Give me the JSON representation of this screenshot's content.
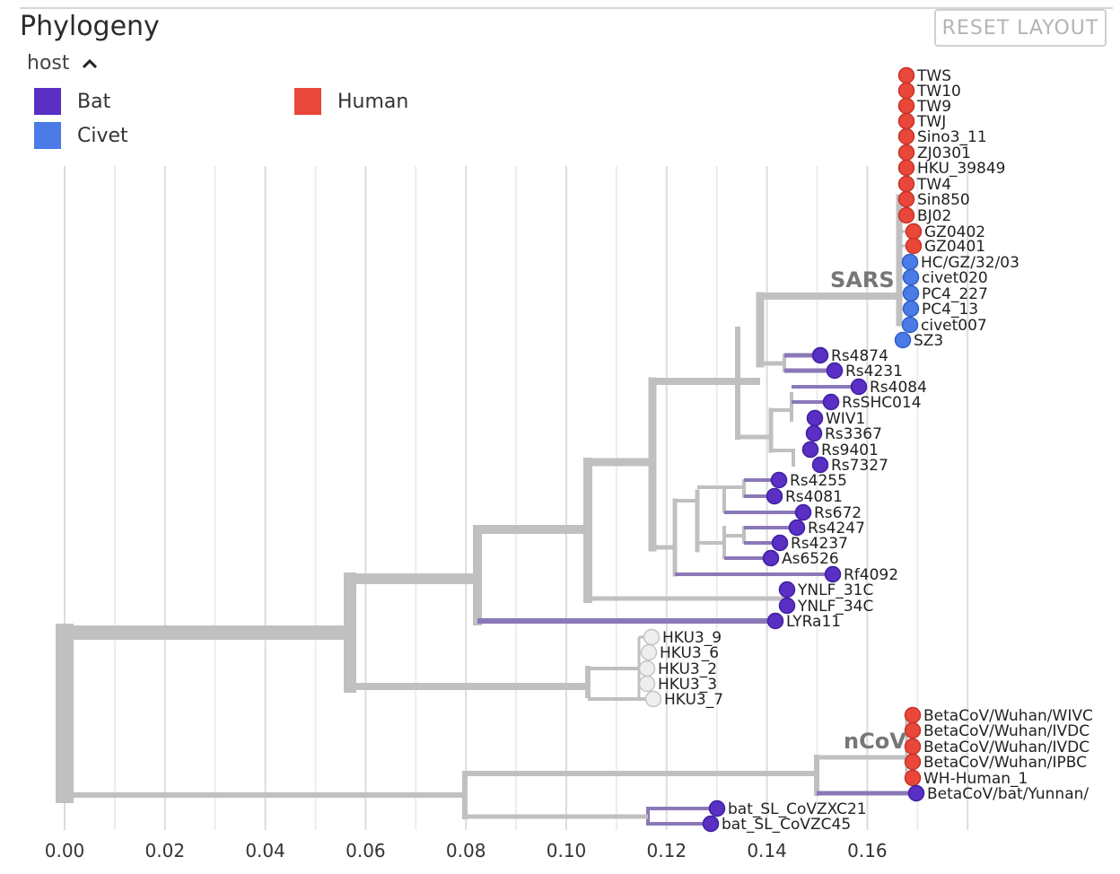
{
  "panel": {
    "title": "Phylogeny",
    "reset_label": "RESET LAYOUT"
  },
  "color_by": {
    "label": "host",
    "icon": "chevron-up-icon"
  },
  "legend": [
    {
      "label": "Bat",
      "color": "#5a2fc4"
    },
    {
      "label": "Human",
      "color": "#e8473a"
    },
    {
      "label": "Civet",
      "color": "#4a7be6"
    }
  ],
  "axis": {
    "ticks": [
      "0.00",
      "0.02",
      "0.04",
      "0.06",
      "0.08",
      "0.10",
      "0.12",
      "0.14",
      "0.16"
    ]
  },
  "clade_labels": {
    "sars": "SARS",
    "ncov": "nCoV"
  },
  "tips": [
    {
      "name": "TWS",
      "host": "human"
    },
    {
      "name": "TW10",
      "host": "human"
    },
    {
      "name": "TW9",
      "host": "human"
    },
    {
      "name": "TWJ",
      "host": "human"
    },
    {
      "name": "Sino3_11",
      "host": "human"
    },
    {
      "name": "ZJ0301",
      "host": "human"
    },
    {
      "name": "HKU_39849",
      "host": "human"
    },
    {
      "name": "TW4",
      "host": "human"
    },
    {
      "name": "Sin850",
      "host": "human"
    },
    {
      "name": "BJ02",
      "host": "human"
    },
    {
      "name": "GZ0402",
      "host": "human"
    },
    {
      "name": "GZ0401",
      "host": "human"
    },
    {
      "name": "HC/GZ/32/03",
      "host": "civet"
    },
    {
      "name": "civet020",
      "host": "civet"
    },
    {
      "name": "PC4_227",
      "host": "civet"
    },
    {
      "name": "PC4_13",
      "host": "civet"
    },
    {
      "name": "civet007",
      "host": "civet"
    },
    {
      "name": "SZ3",
      "host": "civet"
    },
    {
      "name": "Rs4874",
      "host": "bat"
    },
    {
      "name": "Rs4231",
      "host": "bat"
    },
    {
      "name": "Rs4084",
      "host": "bat"
    },
    {
      "name": "RsSHC014",
      "host": "bat"
    },
    {
      "name": "WIV1",
      "host": "bat"
    },
    {
      "name": "Rs3367",
      "host": "bat"
    },
    {
      "name": "Rs9401",
      "host": "bat"
    },
    {
      "name": "Rs7327",
      "host": "bat"
    },
    {
      "name": "Rs4255",
      "host": "bat"
    },
    {
      "name": "Rs4081",
      "host": "bat"
    },
    {
      "name": "Rs672",
      "host": "bat"
    },
    {
      "name": "Rs4247",
      "host": "bat"
    },
    {
      "name": "Rs4237",
      "host": "bat"
    },
    {
      "name": "As6526",
      "host": "bat"
    },
    {
      "name": "Rf4092",
      "host": "bat"
    },
    {
      "name": "YNLF_31C",
      "host": "bat"
    },
    {
      "name": "YNLF_34C",
      "host": "bat"
    },
    {
      "name": "LYRa11",
      "host": "bat"
    },
    {
      "name": "HKU3_9",
      "host": "unknown"
    },
    {
      "name": "HKU3_6",
      "host": "unknown"
    },
    {
      "name": "HKU3_2",
      "host": "unknown"
    },
    {
      "name": "HKU3_3",
      "host": "unknown"
    },
    {
      "name": "HKU3_7",
      "host": "unknown"
    },
    {
      "name": "BetaCoV/Wuhan/WIVC",
      "host": "human"
    },
    {
      "name": "BetaCoV/Wuhan/IVDC",
      "host": "human"
    },
    {
      "name": "BetaCoV/Wuhan/IVDC",
      "host": "human"
    },
    {
      "name": "BetaCoV/Wuhan/IPBC",
      "host": "human"
    },
    {
      "name": "WH-Human_1",
      "host": "human"
    },
    {
      "name": "BetaCoV/bat/Yunnan/",
      "host": "bat"
    },
    {
      "name": "bat_SL_CoVZXC21",
      "host": "bat"
    },
    {
      "name": "bat_SL_CoVZC45",
      "host": "bat"
    }
  ]
}
